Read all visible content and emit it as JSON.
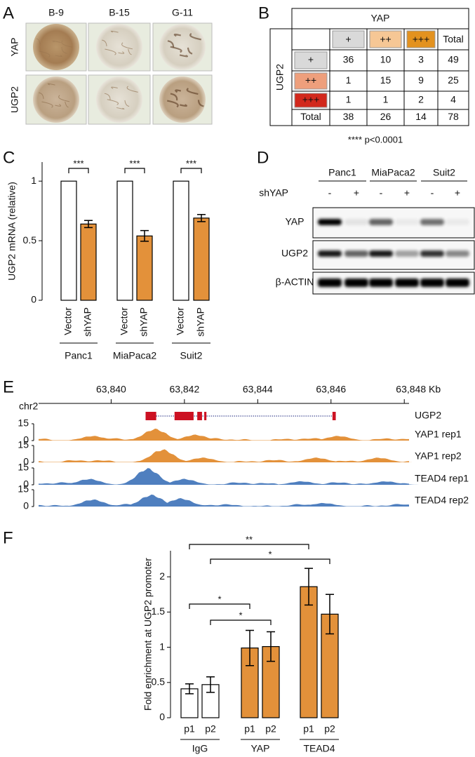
{
  "panel_labels": [
    "A",
    "B",
    "C",
    "D",
    "E",
    "F"
  ],
  "panel_a": {
    "columns": [
      "B-9",
      "B-15",
      "G-11"
    ],
    "rows": [
      "YAP",
      "UGP2"
    ]
  },
  "panel_b": {
    "column_header": "YAP",
    "row_header": "UGP2",
    "columns": [
      "+",
      "++",
      "+++",
      "Total"
    ],
    "rows": [
      {
        "label": "+",
        "cells": [
          36,
          10,
          3,
          49
        ]
      },
      {
        "label": "++",
        "cells": [
          1,
          15,
          9,
          25
        ]
      },
      {
        "label": "+++",
        "cells": [
          1,
          1,
          2,
          4
        ]
      },
      {
        "label": "Total",
        "cells": [
          38,
          26,
          14,
          78
        ]
      }
    ],
    "footnote": "**** p<0.0001"
  },
  "panel_d": {
    "groups": [
      "Panc1",
      "MiaPaca2",
      "Suit2"
    ],
    "condition_label": "shYAP",
    "conditions": [
      "-",
      "+",
      "-",
      "+",
      "-",
      "+"
    ],
    "rows": [
      "YAP",
      "UGP2",
      "β-ACTIN"
    ]
  },
  "panel_e": {
    "chromosome": "chr2",
    "xlim": [
      63838.02,
      63848.13
    ],
    "xticks": [
      {
        "value": 63840,
        "label": "63,840"
      },
      {
        "value": 63842,
        "label": "63,842"
      },
      {
        "value": 63844,
        "label": "63,844"
      },
      {
        "value": 63846,
        "label": "63,846"
      },
      {
        "value": 63848,
        "label": "63,848 Kb"
      }
    ],
    "gene": {
      "name": "UGP2",
      "start": 63840.94,
      "end": 63846.13,
      "exons": [
        [
          63840.94,
          63841.23
        ],
        [
          63841.73,
          63842.25
        ],
        [
          63842.35,
          63842.48
        ],
        [
          63842.54,
          63842.6
        ],
        [
          63846.04,
          63846.13
        ]
      ]
    },
    "tracks": [
      {
        "name": "YAP1 rep1",
        "color": "#e3913a",
        "ylim": [
          0,
          15
        ],
        "yticks": [
          0,
          15
        ],
        "peaks": [
          {
            "x": 63839.5,
            "y": 4
          },
          {
            "x": 63841.2,
            "y": 10
          },
          {
            "x": 63842.3,
            "y": 5
          },
          {
            "x": 63846.2,
            "y": 4
          }
        ]
      },
      {
        "name": "YAP1 rep2",
        "color": "#e3913a",
        "ylim": [
          0,
          15
        ],
        "yticks": [
          0,
          15
        ],
        "peaks": [
          {
            "x": 63841.4,
            "y": 11
          },
          {
            "x": 63842.5,
            "y": 4
          },
          {
            "x": 63845.6,
            "y": 4
          },
          {
            "x": 63847.3,
            "y": 4
          }
        ]
      },
      {
        "name": "TEAD4 rep1",
        "color": "#4f7fbf",
        "ylim": [
          0,
          15
        ],
        "yticks": [
          0,
          15
        ],
        "peaks": [
          {
            "x": 63839.4,
            "y": 5
          },
          {
            "x": 63841.0,
            "y": 14
          },
          {
            "x": 63842.0,
            "y": 5
          },
          {
            "x": 63845.2,
            "y": 3
          },
          {
            "x": 63847.5,
            "y": 3
          }
        ]
      },
      {
        "name": "TEAD4 rep2",
        "color": "#4f7fbf",
        "ylim": [
          0,
          15
        ],
        "yticks": [
          0,
          15
        ],
        "peaks": [
          {
            "x": 63839.5,
            "y": 6
          },
          {
            "x": 63841.1,
            "y": 10
          },
          {
            "x": 63841.9,
            "y": 7
          },
          {
            "x": 63845.8,
            "y": 3
          }
        ]
      }
    ]
  },
  "chart_data": [
    {
      "type": "bar",
      "y_label": "UGP2 mRNA (relative)",
      "groups": [
        "Panc1",
        "MiaPaca2",
        "Suit2"
      ],
      "categories": [
        "Vector",
        "shYAP",
        "Vector",
        "shYAP",
        "Vector",
        "shYAP"
      ],
      "values": [
        1,
        0.64,
        1,
        0.54,
        1,
        0.69
      ],
      "errors": [
        null,
        0.03,
        null,
        0.045,
        null,
        0.03
      ],
      "bar_colors": [
        "#ffffff",
        "#e3913a",
        "#ffffff",
        "#e3913a",
        "#ffffff",
        "#e3913a"
      ],
      "ylim": [
        0,
        1.16
      ],
      "yticks": [
        0,
        0.5,
        1
      ],
      "significance": [
        {
          "from": 0,
          "to": 1,
          "label": "***"
        },
        {
          "from": 2,
          "to": 3,
          "label": "***"
        },
        {
          "from": 4,
          "to": 5,
          "label": "***"
        }
      ]
    },
    {
      "type": "bar",
      "y_label": "Fold enrichment at UGP2 promoter",
      "groups": [
        "IgG",
        "YAP",
        "TEAD4"
      ],
      "categories": [
        "p1",
        "p2",
        "p1",
        "p2",
        "p1",
        "p2"
      ],
      "values": [
        0.41,
        0.47,
        0.99,
        1.01,
        1.86,
        1.47
      ],
      "errors": [
        0.07,
        0.11,
        0.25,
        0.21,
        0.26,
        0.28
      ],
      "bar_colors": [
        "#ffffff",
        "#ffffff",
        "#e3913a",
        "#e3913a",
        "#e3913a",
        "#e3913a"
      ],
      "ylim": [
        0,
        2.37
      ],
      "yticks": [
        0,
        0.5,
        1,
        1.5,
        2
      ],
      "significance": [
        {
          "from": 0,
          "to": 4,
          "label": "**"
        },
        {
          "from": 1,
          "to": 5,
          "label": "*"
        },
        {
          "from": 0,
          "to": 2,
          "label": "*"
        },
        {
          "from": 1,
          "to": 3,
          "label": "*"
        }
      ]
    }
  ]
}
